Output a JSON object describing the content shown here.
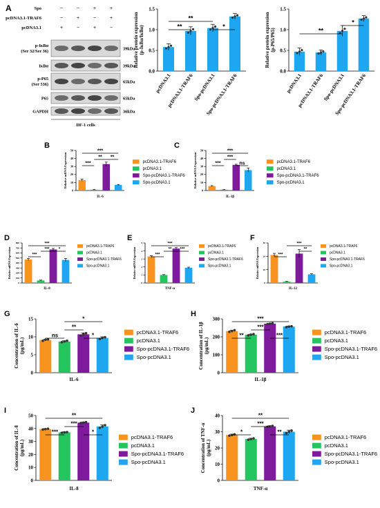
{
  "colors": {
    "pcDNA3.1-TRAF6": "#f7931e",
    "pcDNA3.1": "#22c55e",
    "Spo-pcDNA3.1-TRAF6": "#7e1a9c",
    "Spo-pcDNA3.1": "#1ea7f0",
    "bar_blue": "#1ea7f0"
  },
  "legend_labels": [
    "pcDNA3.1-TRAF6",
    "pcDNA3.1",
    "Spo-pcDNA3.1-TRAF6",
    "Spo-pcDNA3.1"
  ],
  "western_blot": {
    "panel_letter": "A",
    "treatments": [
      {
        "name": "Spo",
        "marks": [
          "−",
          "−",
          "+",
          "+"
        ]
      },
      {
        "name": "pcDNA3.1-TRAF6",
        "marks": [
          "−",
          "+",
          "−",
          "+"
        ]
      },
      {
        "name": "pcDNA3.1",
        "marks": [
          "+",
          "−",
          "+",
          "−"
        ]
      }
    ],
    "bands": [
      {
        "label": [
          "p-IκBα",
          "(Ser 32/Ser 36)"
        ],
        "kda": "39kDa"
      },
      {
        "label": [
          "IκBα"
        ],
        "kda": "39kDa"
      },
      {
        "label": [
          "p-P65",
          "(Ser 536)"
        ],
        "kda": "65kDa"
      },
      {
        "label": [
          "P65"
        ],
        "kda": "65kDa"
      },
      {
        "label": [
          "GAPDH"
        ],
        "kda": "36kDa"
      }
    ],
    "footer": "DF-1 cells"
  },
  "chart_data": [
    {
      "id": "A1",
      "type": "bar",
      "panel": "",
      "categories": [
        "pcDNA3.1",
        "pcDNA3.1-TRAF6",
        "Spo-pcDNA3.1",
        "Spo-pcDNA3.1-TRAF6"
      ],
      "values": [
        0.58,
        0.97,
        1.04,
        1.32
      ],
      "errors": [
        0.08,
        0.1,
        0.09,
        0.07
      ],
      "ylabel": [
        "Relative protein expression",
        "(p-IκBα/IκBα)"
      ],
      "xlabel": "",
      "ylim": [
        0,
        1.5
      ],
      "yticks": [
        "0.0",
        "0.5",
        "1.0",
        "1.5"
      ],
      "significance": [
        {
          "from": 0,
          "to": 2,
          "label": "**",
          "level": 2
        },
        {
          "from": 0,
          "to": 1,
          "label": "**",
          "level": 1
        },
        {
          "from": 2,
          "to": 3,
          "label": "*",
          "level": 1
        }
      ],
      "legend": false
    },
    {
      "id": "A2",
      "type": "bar",
      "panel": "",
      "categories": [
        "pcDNA3.1",
        "pcDNA3.1-TRAF6",
        "Spo-pcDNA3.1",
        "Spo-pcDNA3.1-TRAF6"
      ],
      "values": [
        0.47,
        0.45,
        0.97,
        1.27
      ],
      "errors": [
        0.09,
        0.06,
        0.13,
        0.07
      ],
      "ylabel": [
        "Relative protein expression",
        "(p-P65/P65)"
      ],
      "xlabel": "",
      "ylim": [
        0,
        1.5
      ],
      "yticks": [
        "0.0",
        "0.5",
        "1.0",
        "1.5"
      ],
      "significance": [
        {
          "from": 0,
          "to": 2,
          "label": "**",
          "level": 1
        },
        {
          "from": 2,
          "to": 3,
          "label": "*",
          "level": 2
        }
      ],
      "legend": false
    },
    {
      "id": "B",
      "type": "bar",
      "panel": "B",
      "categories": [
        "pcDNA3.1-TRAF6",
        "pcDNA3.1",
        "Spo-pcDNA3.1-TRAF6",
        "Spo-pcDNA3.1"
      ],
      "values": [
        13,
        1,
        33,
        7
      ],
      "errors": [
        1.2,
        0.2,
        2.5,
        0.5
      ],
      "ylabel": [
        "Relative mRNA Expression"
      ],
      "xlabel": "IL-6",
      "ylim": [
        0,
        50
      ],
      "yticks": [
        "0",
        "10",
        "20",
        "30",
        "40",
        "50"
      ],
      "significance": [
        {
          "from": 0,
          "to": 1,
          "label": "***",
          "level": 1
        },
        {
          "from": 1,
          "to": 2,
          "label": "**",
          "level": 2
        },
        {
          "from": 2,
          "to": 3,
          "label": "**",
          "level": 2
        },
        {
          "from": 0,
          "to": 3,
          "label": "***",
          "level": 3
        }
      ],
      "legend": true
    },
    {
      "id": "C",
      "type": "bar",
      "panel": "C",
      "categories": [
        "pcDNA3.1-TRAF6",
        "pcDNA3.1",
        "Spo-pcDNA3.1-TRAF6",
        "Spo-pcDNA3.1"
      ],
      "values": [
        5.5,
        1,
        32,
        25.5
      ],
      "errors": [
        0.5,
        0.2,
        0.8,
        2.5
      ],
      "ylabel": [
        "Relative mRNA Expression"
      ],
      "xlabel": "IL-1β",
      "ylim": [
        0,
        50
      ],
      "yticks": [
        "0",
        "10",
        "20",
        "30",
        "40",
        "50"
      ],
      "significance": [
        {
          "from": 0,
          "to": 1,
          "label": "***",
          "level": 1
        },
        {
          "from": 1,
          "to": 2,
          "label": "***",
          "level": 2
        },
        {
          "from": 2,
          "to": 3,
          "label": "ns",
          "level": 1
        },
        {
          "from": 0,
          "to": 3,
          "label": "***",
          "level": 3
        }
      ],
      "legend": true
    },
    {
      "id": "D",
      "type": "bar",
      "panel": "D",
      "categories": [
        "pcDNA3.1-TRAF6",
        "pcDNA3.1",
        "Spo-pcDNA3.1-TRAF6",
        "Spo-pcDNA3.1"
      ],
      "values": [
        470,
        50,
        670,
        460
      ],
      "errors": [
        20,
        8,
        20,
        30
      ],
      "ylabel": [
        "Relative mRNA Expression"
      ],
      "xlabel": "IL-8",
      "ylim": [
        0,
        800
      ],
      "yticks": [
        "0",
        "100",
        "200",
        "300",
        "400",
        "500",
        "600",
        "700",
        "800"
      ],
      "significance": [
        {
          "from": 0,
          "to": 1,
          "label": "***",
          "level": 1
        },
        {
          "from": 1,
          "to": 2,
          "label": "***",
          "level": 2
        },
        {
          "from": 2,
          "to": 3,
          "label": "*",
          "level": 2
        },
        {
          "from": 0,
          "to": 3,
          "label": "***",
          "level": 3
        }
      ],
      "legend": true
    },
    {
      "id": "E",
      "type": "bar",
      "panel": "E",
      "categories": [
        "pcDNA3.1-TRAF6",
        "pcDNA3.1",
        "Spo-pcDNA3.1-TRAF6",
        "Spo-pcDNA3.1"
      ],
      "values": [
        3.3,
        1,
        4.3,
        1.9
      ],
      "errors": [
        0.12,
        0.05,
        0.12,
        0.08
      ],
      "ylabel": [
        "Relative mRNA Expression"
      ],
      "xlabel": "TNF-α",
      "ylim": [
        0,
        5
      ],
      "yticks": [
        "0",
        "1",
        "2",
        "3",
        "4",
        "5"
      ],
      "significance": [
        {
          "from": 0,
          "to": 1,
          "label": "***",
          "level": 1
        },
        {
          "from": 1,
          "to": 2,
          "label": "**",
          "level": 2
        },
        {
          "from": 2,
          "to": 3,
          "label": "***",
          "level": 2
        },
        {
          "from": 0,
          "to": 3,
          "label": "***",
          "level": 3
        }
      ],
      "legend": true
    },
    {
      "id": "F",
      "type": "bar",
      "panel": "F",
      "categories": [
        "pcDNA3.1-TRAF6",
        "pcDNA3.1",
        "Spo-pcDNA3.1-TRAF6",
        "Spo-pcDNA3.1"
      ],
      "values": [
        21,
        1,
        22,
        6.5
      ],
      "errors": [
        1.2,
        0.2,
        3,
        0.4
      ],
      "ylabel": [
        "Relative mRNA Expression"
      ],
      "xlabel": "IL-12",
      "ylim": [
        0,
        30
      ],
      "yticks": [
        "0",
        "10",
        "20",
        "30"
      ],
      "significance": [
        {
          "from": 0,
          "to": 1,
          "label": "***",
          "level": 1
        },
        {
          "from": 2,
          "to": 3,
          "label": "**",
          "level": 2
        },
        {
          "from": 1,
          "to": 3,
          "label": "***",
          "level": 3
        }
      ],
      "legend": true
    },
    {
      "id": "G",
      "type": "bar",
      "panel": "G",
      "categories": [
        "pcDNA3.1-TRAF6",
        "pcDNA3.1",
        "Spo-pcDNA3.1-TRAF6",
        "Spo-pcDNA3.1"
      ],
      "values": [
        9.1,
        8.7,
        10.7,
        9.7
      ],
      "errors": [
        0.2,
        0.2,
        0.4,
        0.3
      ],
      "points": [
        [
          8.9,
          9.2,
          9.3
        ],
        [
          8.5,
          8.7,
          8.9
        ],
        [
          10.3,
          10.7,
          11.0
        ],
        [
          9.4,
          9.7,
          9.9
        ]
      ],
      "ylabel": [
        "Concentration of IL-6",
        "(pg/mL)"
      ],
      "xlabel": "IL-6",
      "ylim": [
        0,
        15
      ],
      "yticks": [
        "0",
        "5",
        "10",
        "15"
      ],
      "significance": [
        {
          "from": 0,
          "to": 1,
          "label": "ns",
          "level": 1
        },
        {
          "from": 1,
          "to": 2,
          "label": "**",
          "level": 2
        },
        {
          "from": 2,
          "to": 3,
          "label": "*",
          "level": 1
        },
        {
          "from": 1,
          "to": 3,
          "label": "*",
          "level": 3
        }
      ],
      "legend": true
    },
    {
      "id": "H",
      "type": "bar",
      "panel": "H",
      "categories": [
        "pcDNA3.1-TRAF6",
        "pcDNA3.1",
        "Spo-pcDNA3.1-TRAF6",
        "Spo-pcDNA3.1"
      ],
      "values": [
        232,
        212,
        273,
        257
      ],
      "errors": [
        4,
        3,
        3,
        3
      ],
      "points": [
        [
          228,
          232,
          237
        ],
        [
          208,
          212,
          215
        ],
        [
          270,
          273,
          276
        ],
        [
          254,
          257,
          259
        ]
      ],
      "ylabel": [
        "Concentration of IL-1β",
        "(pg/mL)"
      ],
      "xlabel": "IL-1β",
      "ylim": [
        0,
        300
      ],
      "yticks": [
        "0",
        "100",
        "200",
        "300"
      ],
      "significance": [
        {
          "from": 0,
          "to": 1,
          "label": "**",
          "level": 1
        },
        {
          "from": 1,
          "to": 2,
          "label": "***",
          "level": 2
        },
        {
          "from": 2,
          "to": 3,
          "label": "***",
          "level": 1
        },
        {
          "from": 0,
          "to": 3,
          "label": "***",
          "level": 3
        }
      ],
      "legend": true
    },
    {
      "id": "I",
      "type": "bar",
      "panel": "I",
      "categories": [
        "pcDNA3.1-TRAF6",
        "pcDNA3.1",
        "Spo-pcDNA3.1-TRAF6",
        "Spo-pcDNA3.1"
      ],
      "values": [
        39.5,
        37,
        44.5,
        41.5
      ],
      "errors": [
        0.4,
        0.4,
        0.5,
        1.2
      ],
      "points": [
        [
          39.2,
          39.5,
          39.8
        ],
        [
          36.7,
          37.0,
          37.2
        ],
        [
          44.2,
          44.5,
          44.9
        ],
        [
          40.5,
          41.5,
          42.5
        ]
      ],
      "ylabel": [
        "Concentration of IL-8",
        "(pg/mL)"
      ],
      "xlabel": "IL-8",
      "ylim": [
        0,
        50
      ],
      "yticks": [
        "0",
        "10",
        "20",
        "30",
        "40",
        "50"
      ],
      "significance": [
        {
          "from": 0,
          "to": 1,
          "label": "***",
          "level": 1
        },
        {
          "from": 1,
          "to": 2,
          "label": "***",
          "level": 2
        },
        {
          "from": 2,
          "to": 3,
          "label": "*",
          "level": 1
        },
        {
          "from": 0,
          "to": 3,
          "label": "**",
          "level": 3
        }
      ],
      "legend": true
    },
    {
      "id": "J",
      "type": "bar",
      "panel": "J",
      "categories": [
        "pcDNA3.1-TRAF6",
        "pcDNA3.1",
        "Spo-pcDNA3.1-TRAF6",
        "Spo-pcDNA3.1"
      ],
      "values": [
        28,
        25.5,
        33.3,
        30
      ],
      "errors": [
        0.5,
        0.5,
        0.4,
        1.0
      ],
      "points": [
        [
          27.6,
          28.0,
          28.4
        ],
        [
          25.1,
          25.5,
          25.9
        ],
        [
          33.0,
          33.3,
          33.6
        ],
        [
          29.2,
          30.0,
          30.7
        ]
      ],
      "ylabel": [
        "Concentration of TNF-α",
        "(pg/mL)"
      ],
      "xlabel": "TNF-α",
      "ylim": [
        0,
        40
      ],
      "yticks": [
        "0",
        "10",
        "20",
        "30",
        "40"
      ],
      "significance": [
        {
          "from": 0,
          "to": 1,
          "label": "*",
          "level": 1
        },
        {
          "from": 1,
          "to": 2,
          "label": "***",
          "level": 2
        },
        {
          "from": 2,
          "to": 3,
          "label": "**",
          "level": 1
        },
        {
          "from": 0,
          "to": 3,
          "label": "**",
          "level": 3
        }
      ],
      "legend": true
    }
  ]
}
